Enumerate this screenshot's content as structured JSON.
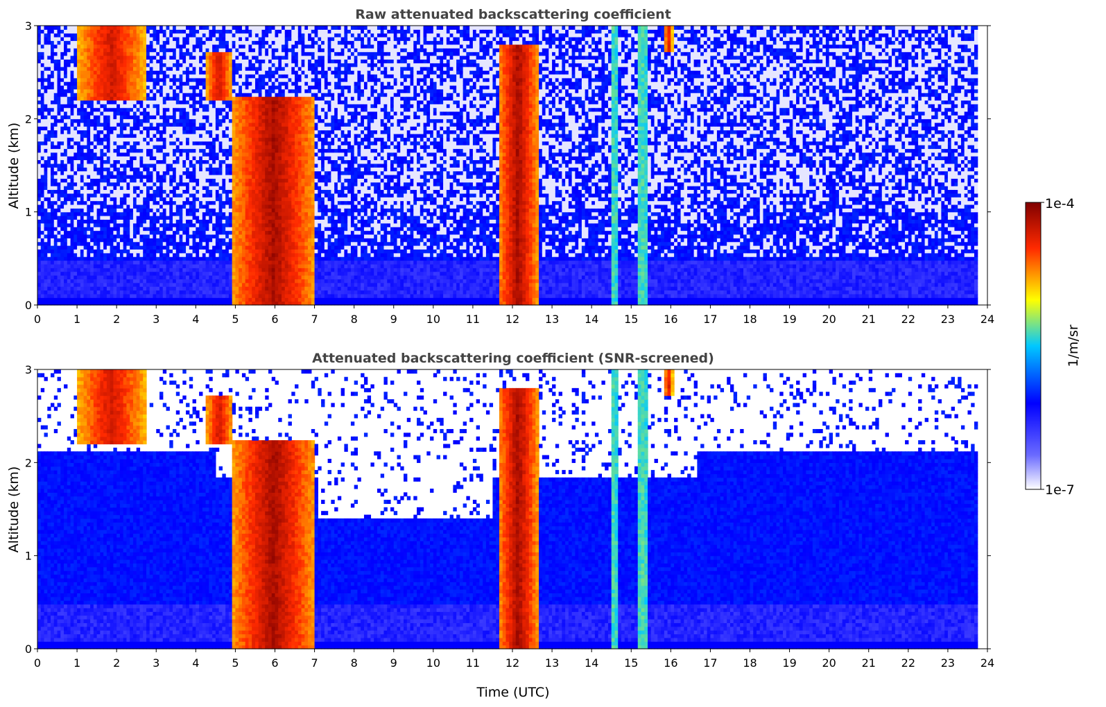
{
  "chart_data": [
    {
      "type": "heatmap",
      "title": "Raw attenuated backscattering coefficient",
      "xlabel": "",
      "ylabel": "Altitude (km)",
      "xlim": [
        0,
        24
      ],
      "ylim": [
        0,
        3
      ],
      "x_ticks": [
        "0",
        "1",
        "2",
        "3",
        "4",
        "5",
        "6",
        "7",
        "8",
        "9",
        "10",
        "11",
        "12",
        "13",
        "14",
        "15",
        "16",
        "17",
        "18",
        "19",
        "20",
        "21",
        "22",
        "23",
        "24"
      ],
      "y_ticks": [
        "0",
        "1",
        "2",
        "3"
      ],
      "data_extent_hours": [
        0,
        23.75
      ],
      "screened": false,
      "features": [
        {
          "x_range": [
            4.9,
            6.95
          ],
          "top_km": 2.2,
          "peak": 0.95
        },
        {
          "x_range": [
            11.6,
            12.6
          ],
          "top_km": 2.8,
          "peak": 0.95
        },
        {
          "x_range": [
            14.45,
            14.6
          ],
          "top_km": 3.0,
          "peak": 0.55
        },
        {
          "x_range": [
            15.1,
            15.35
          ],
          "top_km": 3.0,
          "peak": 0.55
        },
        {
          "x_range": [
            0.95,
            2.7
          ],
          "bottom_km": 2.2,
          "top_km": 3.0,
          "peak": 0.9
        },
        {
          "x_range": [
            4.2,
            4.9
          ],
          "bottom_km": 2.2,
          "top_km": 2.7,
          "peak": 0.9
        },
        {
          "x_range": [
            15.8,
            16.0
          ],
          "bottom_km": 2.7,
          "top_km": 3.0,
          "peak": 0.9
        }
      ]
    },
    {
      "type": "heatmap",
      "title": "Attenuated backscattering coefficient (SNR-screened)",
      "xlabel": "Time (UTC)",
      "ylabel": "Altitude (km)",
      "xlim": [
        0,
        24
      ],
      "ylim": [
        0,
        3
      ],
      "x_ticks": [
        "0",
        "1",
        "2",
        "3",
        "4",
        "5",
        "6",
        "7",
        "8",
        "9",
        "10",
        "11",
        "12",
        "13",
        "14",
        "15",
        "16",
        "17",
        "18",
        "19",
        "20",
        "21",
        "22",
        "23",
        "24"
      ],
      "y_ticks": [
        "0",
        "1",
        "2",
        "3"
      ],
      "data_extent_hours": [
        0,
        23.75
      ],
      "screened": true,
      "features": [
        {
          "x_range": [
            4.9,
            6.95
          ],
          "top_km": 2.2,
          "peak": 0.95
        },
        {
          "x_range": [
            11.6,
            12.6
          ],
          "top_km": 2.8,
          "peak": 0.95
        },
        {
          "x_range": [
            14.45,
            14.6
          ],
          "top_km": 3.0,
          "peak": 0.55
        },
        {
          "x_range": [
            15.1,
            15.35
          ],
          "top_km": 3.0,
          "peak": 0.55
        },
        {
          "x_range": [
            0.95,
            2.7
          ],
          "bottom_km": 2.2,
          "top_km": 3.0,
          "peak": 0.9
        },
        {
          "x_range": [
            4.2,
            4.9
          ],
          "bottom_km": 2.2,
          "top_km": 2.7,
          "peak": 0.9
        },
        {
          "x_range": [
            15.8,
            16.0
          ],
          "bottom_km": 2.7,
          "top_km": 3.0,
          "peak": 0.9
        }
      ]
    }
  ],
  "colorbar": {
    "label": "1/m/sr",
    "max_label": "1e-4",
    "min_label": "1e-7",
    "colormap": [
      "#ffffff",
      "#0000ff",
      "#00ffff",
      "#ffff00",
      "#ff0000",
      "#800000"
    ]
  }
}
